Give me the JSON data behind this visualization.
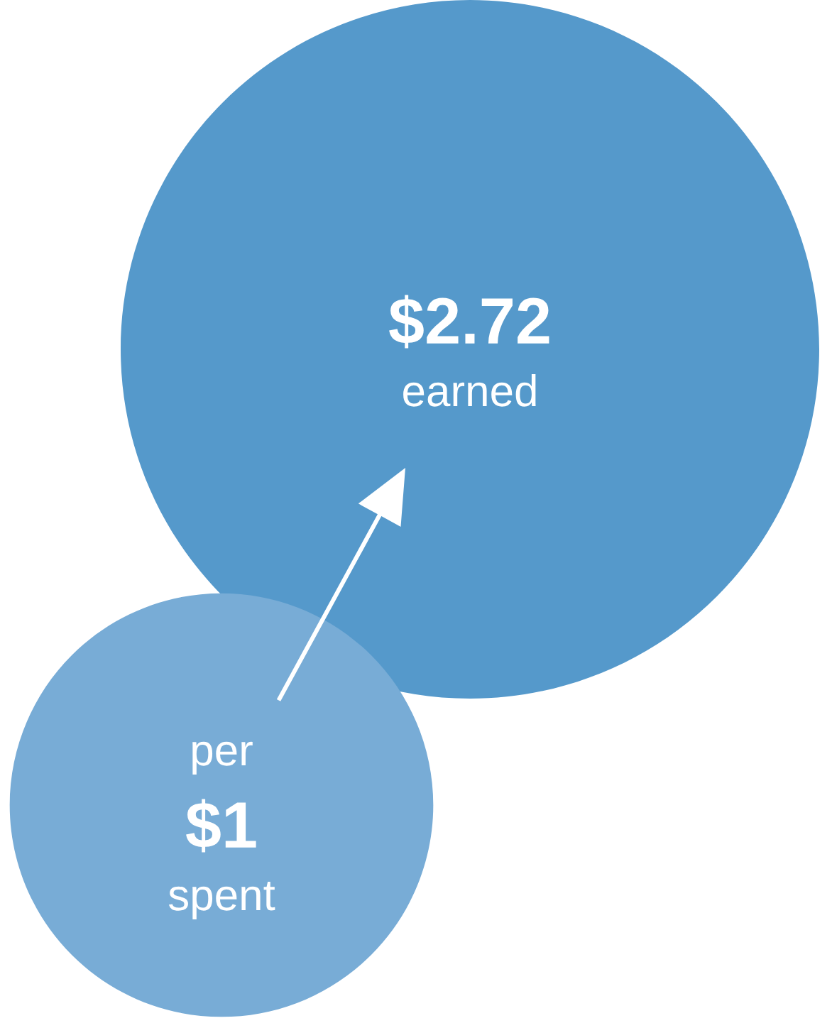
{
  "chart_data": {
    "type": "other",
    "categories": [
      "spent",
      "earned"
    ],
    "values": [
      1,
      2.72
    ],
    "value_labels": [
      "$1",
      "$2.72"
    ],
    "colors": [
      "#78acd6",
      "#5599cb"
    ],
    "annotations": [
      "per"
    ]
  }
}
